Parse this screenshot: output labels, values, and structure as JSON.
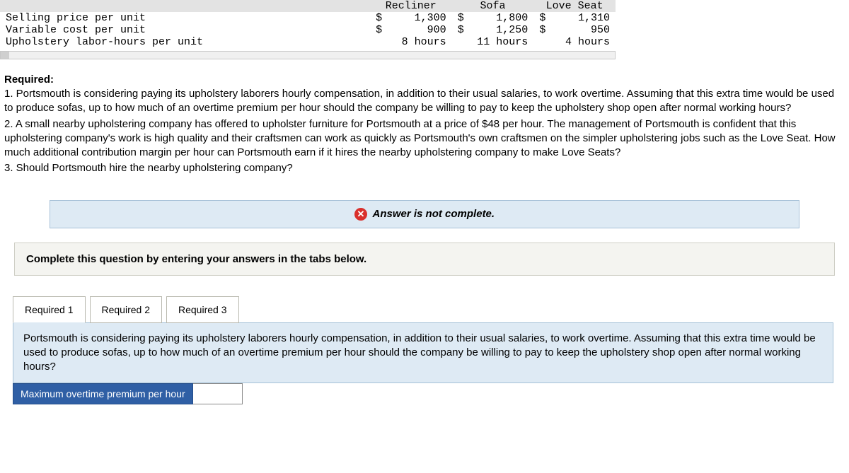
{
  "table": {
    "columns": [
      "Recliner",
      "Sofa",
      "Love Seat"
    ],
    "rows": [
      {
        "label": "Selling price per unit",
        "c1": "$",
        "v1": "1,300",
        "c2": "$",
        "v2": "1,800",
        "c3": "$",
        "v3": "1,310"
      },
      {
        "label": "Variable cost per unit",
        "c1": "$",
        "v1": "900",
        "c2": "$",
        "v2": "1,250",
        "c3": "$",
        "v3": "950"
      },
      {
        "label": "Upholstery labor-hours per unit",
        "c1": "",
        "v1": "8 hours",
        "c2": "",
        "v2": "11 hours",
        "c3": "",
        "v3": "4 hours"
      }
    ]
  },
  "required": {
    "heading": "Required:",
    "q1": "1. Portsmouth is considering paying its upholstery laborers hourly compensation, in addition to their usual salaries, to work overtime. Assuming that this extra time would be used to produce sofas, up to how much of an overtime premium per hour should the company be willing to pay to keep the upholstery shop open after normal working hours?",
    "q2": "2. A small nearby upholstering company has offered to upholster furniture for Portsmouth at a price of $48 per hour. The management of Portsmouth is confident that this upholstering company's work is high quality and their craftsmen can work as quickly as Portsmouth's own craftsmen on the simpler upholstering jobs such as the Love Seat. How much additional contribution margin per hour can Portsmouth earn if it hires the nearby upholstering company to make Love Seats?",
    "q3": "3. Should Portsmouth hire the nearby upholstering company?"
  },
  "alert": {
    "text": "Answer is not complete."
  },
  "instruction": "Complete this question by entering your answers in the tabs below.",
  "tabs": {
    "t1": "Required 1",
    "t2": "Required 2",
    "t3": "Required 3"
  },
  "tabContent": "Portsmouth is considering paying its upholstery laborers hourly compensation, in addition to their usual salaries, to work overtime. Assuming that this extra time would be used to produce sofas, up to how much of an overtime premium per hour should the company be willing to pay to keep the upholstery shop open after normal working hours?",
  "answer": {
    "label": "Maximum overtime premium per hour",
    "value": ""
  },
  "colors": {
    "header_bg": "#e3e3e3",
    "alert_bg": "#deeaf4",
    "alert_border": "#a6c1d8",
    "error_icon": "#d9302c",
    "instruction_bg": "#f4f4f0",
    "tab_content_bg": "#deeaf4",
    "answer_label_bg": "#2f5fa5"
  }
}
